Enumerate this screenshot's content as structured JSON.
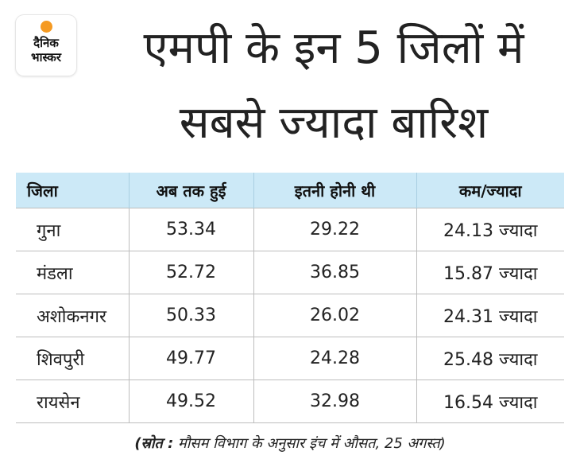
{
  "logo": {
    "line1": "दैनिक",
    "line2": "भास्कर"
  },
  "title": {
    "line1": "एमपी के इन 5 जिलों में",
    "line2": "सबसे ज्यादा बारिश"
  },
  "table": {
    "headers": [
      "जिला",
      "अब तक हुई",
      "इतनी होनी थी",
      "कम/ज्यादा"
    ],
    "rows": [
      [
        "गुना",
        "53.34",
        "29.22",
        "24.13 ज्यादा"
      ],
      [
        "मंडला",
        "52.72",
        "36.85",
        "15.87 ज्यादा"
      ],
      [
        "अशोकनगर",
        "50.33",
        "26.02",
        "24.31 ज्यादा"
      ],
      [
        "शिवपुरी",
        "49.77",
        "24.28",
        "25.48 ज्यादा"
      ],
      [
        "रायसेन",
        "49.52",
        "32.98",
        "16.54 ज्यादा"
      ]
    ]
  },
  "source": {
    "label": "(स्रोत :",
    "text": " मौसम विभाग के अनुसार इंच में औसत, 25 अगस्त)"
  },
  "colors": {
    "header_bg": "#cce9f7",
    "logo_sun": "#f59a22"
  }
}
